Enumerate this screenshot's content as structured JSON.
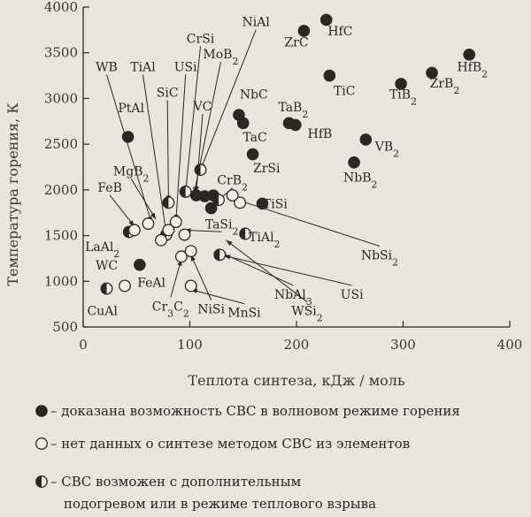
{
  "chart_data": {
    "type": "scatter",
    "xlabel": "Теплота синтеза, кДж / моль",
    "ylabel": "Температура горения, К",
    "xlim": [
      0,
      400
    ],
    "ylim": [
      500,
      4000
    ],
    "x_ticks": [
      "0",
      "100",
      "200",
      "300",
      "400"
    ],
    "y_ticks": [
      "500",
      "1000",
      "1500",
      "2000",
      "2500",
      "3000",
      "3500",
      "4000"
    ],
    "grid": false,
    "legend_position": "bottom",
    "legend": [
      {
        "kind": "filled",
        "text": "– доказана возможность СВС в  волновом режиме горения"
      },
      {
        "kind": "open",
        "text": "– нет данных о синтезе методом СВС из элементов"
      },
      {
        "kind": "half",
        "text": "– СВС возможен с дополнительным",
        "text2": "подогревом или в режиме теплового взрыва"
      }
    ],
    "colors": {
      "marker": "#2a2724",
      "marker_fill_open": "#f2efe8",
      "background": "#e8e5de"
    },
    "points": [
      {
        "label": "HfC",
        "x": 228,
        "y": 3860,
        "kind": "filled"
      },
      {
        "label": "ZrC",
        "x": 207,
        "y": 3740,
        "kind": "filled"
      },
      {
        "label": "TiC",
        "x": 231,
        "y": 3250,
        "kind": "filled"
      },
      {
        "label": "NbC",
        "x": 146,
        "y": 2820,
        "kind": "filled"
      },
      {
        "label": "TaC",
        "x": 150,
        "y": 2730,
        "kind": "filled"
      },
      {
        "label": "TaB2",
        "x": 193,
        "y": 2730,
        "kind": "filled"
      },
      {
        "label": "HfB",
        "x": 199,
        "y": 2710,
        "kind": "filled"
      },
      {
        "label": "ZrSi",
        "x": 159,
        "y": 2390,
        "kind": "filled"
      },
      {
        "label": "HfB2",
        "x": 362,
        "y": 3480,
        "kind": "filled"
      },
      {
        "label": "ZrB2",
        "x": 327,
        "y": 3280,
        "kind": "filled"
      },
      {
        "label": "TiB2",
        "x": 298,
        "y": 3160,
        "kind": "filled"
      },
      {
        "label": "VB2",
        "x": 265,
        "y": 2550,
        "kind": "filled"
      },
      {
        "label": "NbB2",
        "x": 254,
        "y": 2300,
        "kind": "filled"
      },
      {
        "label": "PtAl",
        "x": 42,
        "y": 2580,
        "kind": "filled"
      },
      {
        "label": "TiSi",
        "x": 168,
        "y": 1850,
        "kind": "filled"
      },
      {
        "label": "FeAl",
        "x": 53,
        "y": 1180,
        "kind": "filled"
      },
      {
        "label": "VC",
        "x": 106,
        "y": 1940,
        "kind": "filled"
      },
      {
        "label": "CrB2",
        "x": 122,
        "y": 1940,
        "kind": "filled"
      },
      {
        "label": "CrSi",
        "x": 120,
        "y": 1800,
        "kind": "filled"
      },
      {
        "label": "NbSi2",
        "x": 114,
        "y": 1930,
        "kind": "filled"
      },
      {
        "label": "WB",
        "x": 80,
        "y": 1860,
        "kind": "half"
      },
      {
        "label": "TiAl",
        "x": 78,
        "y": 1510,
        "kind": "half"
      },
      {
        "label": "MoB2",
        "x": 96,
        "y": 1980,
        "kind": "half"
      },
      {
        "label": "NiAl",
        "x": 110,
        "y": 2220,
        "kind": "half"
      },
      {
        "label": "LaAl2",
        "x": 43,
        "y": 1540,
        "kind": "half"
      },
      {
        "label": "CuAl",
        "x": 22,
        "y": 920,
        "kind": "half"
      },
      {
        "label": "TiAl2",
        "x": 152,
        "y": 1520,
        "kind": "half"
      },
      {
        "label": "USi",
        "x": 128,
        "y": 1290,
        "kind": "half"
      },
      {
        "label": "NbAl3",
        "x": 127,
        "y": 1890,
        "kind": "half"
      },
      {
        "label": "MgB2",
        "x": 61,
        "y": 1630,
        "kind": "open"
      },
      {
        "label": "FeB",
        "x": 48,
        "y": 1560,
        "kind": "open"
      },
      {
        "label": "SiC",
        "x": 80,
        "y": 1560,
        "kind": "open"
      },
      {
        "label": "USi",
        "x": 87,
        "y": 1650,
        "kind": "open"
      },
      {
        "label": "TaSi2",
        "x": 95,
        "y": 1510,
        "kind": "open"
      },
      {
        "label": "WC",
        "x": 39,
        "y": 950,
        "kind": "open"
      },
      {
        "label": "Cr3C2",
        "x": 92,
        "y": 1270,
        "kind": "open"
      },
      {
        "label": "NiSi",
        "x": 101,
        "y": 1330,
        "kind": "open"
      },
      {
        "label": "MnSi",
        "x": 101,
        "y": 950,
        "kind": "open"
      },
      {
        "label": "WSi2",
        "x": 147,
        "y": 1860,
        "kind": "open"
      },
      {
        "label": "NbSi2",
        "x": 140,
        "y": 1940,
        "kind": "open"
      },
      {
        "label": "",
        "x": 73,
        "y": 1450,
        "kind": "open"
      }
    ],
    "labels": [
      {
        "text": "NiAl",
        "x": 162,
        "y": 3790,
        "pointer": [
          110,
          2220
        ]
      },
      {
        "text": "CrSi",
        "x": 110,
        "y": 3610,
        "pointer": [
          96,
          1980
        ]
      },
      {
        "text": "MoB2",
        "x": 129,
        "y": 3440,
        "pointer": [
          104,
          1960
        ]
      },
      {
        "text": "USi",
        "x": 96,
        "y": 3300,
        "pointer": [
          87,
          1660
        ]
      },
      {
        "text": "TiAl",
        "x": 56,
        "y": 3300,
        "pointer": [
          78,
          1520
        ]
      },
      {
        "text": "WB",
        "x": 22,
        "y": 3300,
        "pointer": [
          64,
          1640
        ]
      },
      {
        "text": "SiC",
        "x": 79,
        "y": 3020,
        "pointer": [
          80,
          1870
        ]
      },
      {
        "text": "PtAl",
        "x": 45,
        "y": 2850,
        "kind": "plain"
      },
      {
        "text": "VC",
        "x": 112,
        "y": 2870,
        "pointer": [
          106,
          1970
        ]
      },
      {
        "text": "NbC",
        "x": 160,
        "y": 3000,
        "kind": "plain"
      },
      {
        "text": "TaB2",
        "x": 197,
        "y": 2860,
        "kind": "plain"
      },
      {
        "text": "ZrC",
        "x": 200,
        "y": 3570,
        "kind": "plain"
      },
      {
        "text": "HfC",
        "x": 241,
        "y": 3690,
        "kind": "plain"
      },
      {
        "text": "TiC",
        "x": 245,
        "y": 3040,
        "kind": "plain"
      },
      {
        "text": "HfB2",
        "x": 365,
        "y": 3300,
        "kind": "plain"
      },
      {
        "text": "ZrB2",
        "x": 339,
        "y": 3120,
        "kind": "plain"
      },
      {
        "text": "TiB2",
        "x": 300,
        "y": 3000,
        "kind": "plain"
      },
      {
        "text": "HfB",
        "x": 222,
        "y": 2570,
        "kind": "plain"
      },
      {
        "text": "TaC",
        "x": 161,
        "y": 2530,
        "kind": "plain"
      },
      {
        "text": "ZrSi",
        "x": 172,
        "y": 2190,
        "kind": "plain"
      },
      {
        "text": "VB2",
        "x": 285,
        "y": 2430,
        "kind": "plain"
      },
      {
        "text": "NbB2",
        "x": 260,
        "y": 2090,
        "kind": "plain"
      },
      {
        "text": "MgB2",
        "x": 45,
        "y": 2160,
        "pointer": [
          68,
          1680
        ]
      },
      {
        "text": "FeB",
        "x": 25,
        "y": 1980,
        "pointer": [
          48,
          1600
        ]
      },
      {
        "text": "CrB2",
        "x": 140,
        "y": 2060,
        "pointer": [
          120,
          1820
        ]
      },
      {
        "text": "TaSi2",
        "x": 130,
        "y": 1580,
        "pointer": [
          95,
          1560
        ]
      },
      {
        "text": "TiSi",
        "x": 180,
        "y": 1800,
        "kind": "plain"
      },
      {
        "text": "TiAl2",
        "x": 170,
        "y": 1440,
        "kind": "plain"
      },
      {
        "text": "LaAl2",
        "x": 18,
        "y": 1330,
        "kind": "plain"
      },
      {
        "text": "NbSi2",
        "x": 278,
        "y": 1240,
        "pointer": [
          142,
          1900
        ]
      },
      {
        "text": "WC",
        "x": 22,
        "y": 1130,
        "kind": "plain"
      },
      {
        "text": "FeAl",
        "x": 64,
        "y": 940,
        "kind": "plain"
      },
      {
        "text": "CuAl",
        "x": 18,
        "y": 630,
        "kind": "plain"
      },
      {
        "text": "Cr3C2",
        "x": 82,
        "y": 680,
        "pointer": [
          92,
          1240
        ]
      },
      {
        "text": "NiSi",
        "x": 120,
        "y": 650,
        "pointer": [
          101,
          1290
        ]
      },
      {
        "text": "MnSi",
        "x": 151,
        "y": 610,
        "pointer": [
          101,
          910
        ]
      },
      {
        "text": "NbAl3",
        "x": 197,
        "y": 810,
        "pointer": [
          128,
          1320
        ]
      },
      {
        "text": "USi",
        "x": 252,
        "y": 810,
        "pointer": [
          132,
          1280
        ]
      },
      {
        "text": "WSi2",
        "x": 210,
        "y": 630,
        "pointer": [
          134,
          1450
        ]
      }
    ]
  }
}
